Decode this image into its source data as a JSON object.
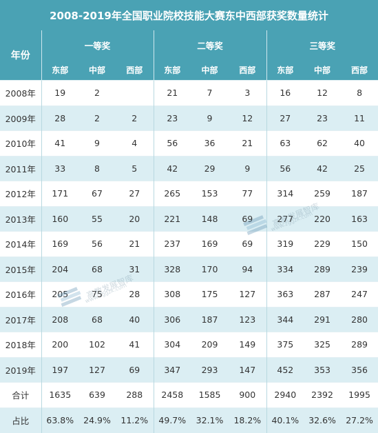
{
  "title": "2008-2019年全国职业院校技能大赛东中西部获奖数量统计",
  "header": {
    "year_label": "年份",
    "groups": [
      "一等奖",
      "二等奖",
      "三等奖"
    ],
    "regions": [
      "东部",
      "中部",
      "西部"
    ]
  },
  "rows": [
    {
      "year": "2008年",
      "values": [
        "19",
        "2",
        "",
        "21",
        "7",
        "3",
        "16",
        "12",
        "8"
      ]
    },
    {
      "year": "2009年",
      "values": [
        "28",
        "2",
        "2",
        "23",
        "9",
        "12",
        "27",
        "23",
        "11"
      ]
    },
    {
      "year": "2010年",
      "values": [
        "41",
        "9",
        "4",
        "56",
        "36",
        "21",
        "63",
        "62",
        "40"
      ]
    },
    {
      "year": "2011年",
      "values": [
        "33",
        "8",
        "5",
        "42",
        "29",
        "9",
        "56",
        "42",
        "25"
      ]
    },
    {
      "year": "2012年",
      "values": [
        "171",
        "67",
        "27",
        "265",
        "153",
        "77",
        "314",
        "259",
        "187"
      ]
    },
    {
      "year": "2013年",
      "values": [
        "160",
        "55",
        "20",
        "221",
        "148",
        "69",
        "277",
        "220",
        "163"
      ]
    },
    {
      "year": "2014年",
      "values": [
        "169",
        "56",
        "21",
        "237",
        "169",
        "69",
        "319",
        "229",
        "150"
      ]
    },
    {
      "year": "2015年",
      "values": [
        "204",
        "68",
        "31",
        "328",
        "170",
        "94",
        "334",
        "289",
        "239"
      ]
    },
    {
      "year": "2016年",
      "values": [
        "205",
        "75",
        "28",
        "308",
        "175",
        "127",
        "363",
        "287",
        "247"
      ]
    },
    {
      "year": "2017年",
      "values": [
        "208",
        "68",
        "40",
        "306",
        "187",
        "123",
        "344",
        "291",
        "280"
      ]
    },
    {
      "year": "2018年",
      "values": [
        "200",
        "102",
        "41",
        "304",
        "209",
        "149",
        "375",
        "325",
        "289"
      ]
    },
    {
      "year": "2019年",
      "values": [
        "197",
        "127",
        "69",
        "347",
        "293",
        "147",
        "452",
        "353",
        "356"
      ]
    },
    {
      "year": "合计",
      "values": [
        "1635",
        "639",
        "288",
        "2458",
        "1585",
        "900",
        "2940",
        "2392",
        "1995"
      ]
    },
    {
      "year": "占比",
      "values": [
        "63.8%",
        "24.9%",
        "11.2%",
        "49.7%",
        "32.1%",
        "18.2%",
        "40.1%",
        "32.6%",
        "27.2%"
      ]
    }
  ],
  "watermarks": [
    {
      "text": "高教发展智库",
      "sub": "www.zggzk.com",
      "icon": "books-icon"
    },
    {
      "text": "高教发展智库",
      "sub": "www.zggzk.com",
      "icon": "books-icon"
    }
  ],
  "colors": {
    "header_bg": "#4aa2b4",
    "stripe": "#dbeef3"
  }
}
